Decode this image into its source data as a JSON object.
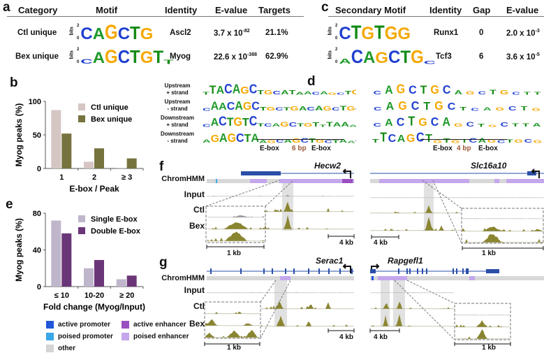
{
  "panels": {
    "a": "a",
    "b": "b",
    "c": "c",
    "d": "d",
    "e": "e",
    "f": "f",
    "g": "g"
  },
  "table_a": {
    "headers": [
      "Category",
      "Motif",
      "Identity",
      "E-value",
      "Targets"
    ],
    "rows": [
      {
        "category": "Ctl unique",
        "motif": "CAGCTG",
        "identity": "Ascl2",
        "evalue_base": "3.7 x 10",
        "evalue_exp": "-82",
        "targets": "21.1%"
      },
      {
        "category": "Bex unique",
        "motif": "CAGCTGTT",
        "identity": "Myog",
        "evalue_base": "22.6 x 10",
        "evalue_exp": "-388",
        "targets": "62.9%"
      }
    ]
  },
  "table_c": {
    "headers": [
      "Secondary Motif",
      "Identity",
      "Gap",
      "E-value"
    ],
    "rows": [
      {
        "motif": "CTGTGG",
        "identity": "Runx1",
        "gap": "0",
        "evalue_base": "2.0 x 10",
        "evalue_exp": "-3"
      },
      {
        "motif": "ACAGCTGC",
        "identity": "Tcf3",
        "gap": "6",
        "evalue_base": "3.6 x 10",
        "evalue_exp": "-5"
      }
    ]
  },
  "logo_axis": {
    "label": "bits",
    "top": "2",
    "bottom": "0"
  },
  "chart_data": [
    {
      "type": "bar",
      "panel": "b",
      "categories": [
        "1",
        "2",
        "≥ 3"
      ],
      "series": [
        {
          "name": "Ctl unique",
          "color": "#d5c5c3",
          "values": [
            87,
            10,
            1
          ]
        },
        {
          "name": "Bex unique",
          "color": "#77733f",
          "values": [
            52,
            30,
            15
          ]
        }
      ],
      "xlabel": "E-box / Peak",
      "ylabel": "Myog peaks (%)",
      "ylim": [
        0,
        100
      ],
      "yticks": [
        "0",
        "50",
        "100"
      ],
      "legend": "top-right"
    },
    {
      "type": "bar",
      "panel": "e",
      "categories": [
        "≤ 10",
        "10-20",
        "≥ 20"
      ],
      "series": [
        {
          "name": "Single E-box",
          "color": "#bfb6cc",
          "values": [
            72,
            20,
            8
          ]
        },
        {
          "name": "Double E-box",
          "color": "#6b3678",
          "values": [
            58,
            29,
            12
          ]
        }
      ],
      "xlabel": "Fold change (Myog/Input)",
      "ylabel": "Myog peaks (%)",
      "ylim": [
        0,
        80
      ],
      "yticks": [
        "0",
        "40",
        "80"
      ],
      "legend": "top-right"
    }
  ],
  "panel_d": {
    "rows": [
      "Upstream\n+ strand",
      "Upstream\n- strand",
      "Downstream\n+ strand",
      "Downstream\n- strand"
    ],
    "left": {
      "ebox1": "E-box",
      "gap": "6 bp",
      "ebox2": "E-box",
      "logos": [
        "TTACAGCTGCATAACAGCTGCTCTGTCGTAATACGAGAA",
        "CAACAGCTGCTGACAGCTGCCC",
        "CACTGTCTCAGCTGTTTAAA",
        "AGAGCTAAGCAGCTGCTAACCACCTGCCGG"
      ]
    },
    "right": {
      "ebox1": "E-box",
      "gap": "4 bp",
      "ebox2": "E-box",
      "logos": [
        "CAGCTGCAGCTGCTT",
        "CAGCTGCTCAGCTG",
        "CACTGCAGCTGCTTA",
        "TTCAGCTGTGTCAGCTGCG"
      ]
    }
  },
  "tracks": {
    "labels": [
      "ChromHMM",
      "Input",
      "Ctl",
      "Bex"
    ],
    "genes": [
      "Hecw2",
      "Slc16a10",
      "Serac1",
      "Rapgefl1"
    ],
    "scale_large": "4 kb",
    "scale_small": "1 kb"
  },
  "chromhmm_legend": [
    {
      "label": "active promoter",
      "color": "#2156d9"
    },
    {
      "label": "poised promoter",
      "color": "#3aa7e8"
    },
    {
      "label": "other",
      "color": "#d4d4d4"
    },
    {
      "label": "active enhancer",
      "color": "#9a4fc0"
    },
    {
      "label": "poised enhancer",
      "color": "#c4a7ec"
    }
  ],
  "colors": {
    "peak": "#8a8530",
    "gene": "#2a4fa8",
    "enh": "#b79ad9"
  }
}
